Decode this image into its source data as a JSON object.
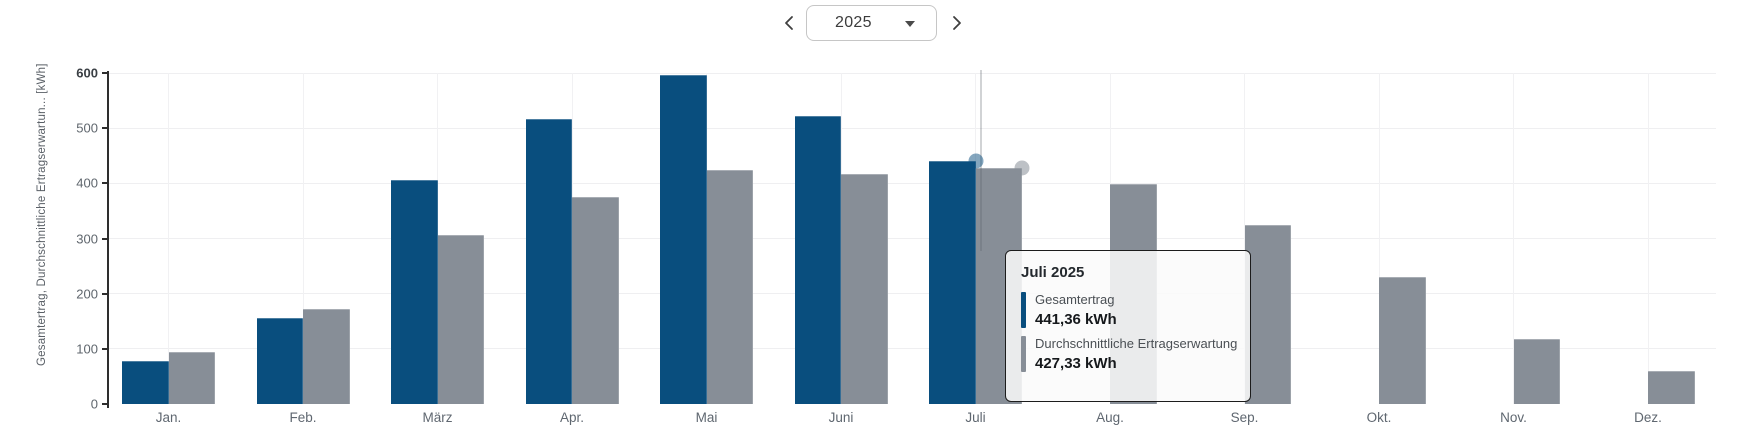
{
  "header": {
    "year": "2025",
    "prev_icon": "chevron-left",
    "next_icon": "chevron-right"
  },
  "tooltip": {
    "title": "Juli 2025",
    "rows": [
      {
        "label": "Gesamtertrag",
        "value": "441,36 kWh",
        "color": "#094e7e"
      },
      {
        "label": "Durchschnittliche Ertragserwartung",
        "value": "427,33 kWh",
        "color": "#878e97"
      }
    ]
  },
  "chart_data": {
    "type": "bar",
    "title": "",
    "xlabel": "",
    "ylabel": "Gesamtertrag, Durchschnittliche Ertragserwartun... [kWh]",
    "ylim": [
      0,
      600
    ],
    "ytick_step": 100,
    "grid": true,
    "legend_position": "tooltip-only",
    "categories": [
      "Jan.",
      "Feb.",
      "März",
      "Apr.",
      "Mai",
      "Juni",
      "Juli",
      "Aug.",
      "Sep.",
      "Okt.",
      "Nov.",
      "Dez."
    ],
    "series": [
      {
        "name": "Gesamtertrag",
        "color": "#094e7e",
        "values": [
          78,
          155,
          406,
          517,
          596,
          522,
          441.36,
          null,
          null,
          null,
          null,
          null
        ]
      },
      {
        "name": "Durchschnittliche Ertragserwartung",
        "color": "#878e97",
        "values": [
          94,
          172,
          306,
          376,
          425,
          417,
          427.33,
          399,
          324,
          230,
          118,
          60
        ]
      }
    ],
    "hover": {
      "month_index": 6,
      "month_label": "Juli",
      "markers": true
    }
  },
  "colors": {
    "axis": "#2e2e2e",
    "gridline": "#efeff1",
    "crosshair": "rgba(90,97,105,0.28)",
    "dot_blue": "rgba(9,78,126,0.5)",
    "dot_gray": "rgba(135,142,151,0.55)"
  }
}
